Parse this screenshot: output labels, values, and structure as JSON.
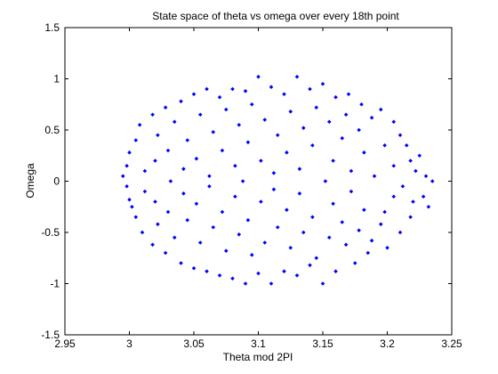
{
  "chart_data": {
    "type": "scatter",
    "title": "State space of theta vs omega over every 18th point",
    "xlabel": "Theta mod 2PI",
    "ylabel": "Omega",
    "xlim": [
      2.95,
      3.25
    ],
    "ylim": [
      -1.5,
      1.5
    ],
    "xticks": [
      2.95,
      3.0,
      3.05,
      3.1,
      3.15,
      3.2,
      3.25
    ],
    "xtick_labels": [
      "2.95",
      "3",
      "3.05",
      "3.1",
      "3.15",
      "3.2",
      "3.25"
    ],
    "yticks": [
      -1.5,
      -1.0,
      -0.5,
      0,
      0.5,
      1.0,
      1.5
    ],
    "ytick_labels": [
      "-1.5",
      "-1",
      "-0.5",
      "0",
      "0.5",
      "1",
      "1.5"
    ],
    "grid": false,
    "marker_color": "#0000ff",
    "series": [
      {
        "marker": "diamond",
        "points": [
          [
            2.995,
            0.05
          ],
          [
            2.998,
            -0.05
          ],
          [
            2.998,
            0.15
          ],
          [
            3.0,
            -0.18
          ],
          [
            3.0,
            0.28
          ],
          [
            3.002,
            -0.25
          ],
          [
            3.005,
            0.4
          ],
          [
            3.005,
            -0.35
          ],
          [
            3.008,
            0.55
          ],
          [
            3.01,
            -0.5
          ],
          [
            3.012,
            0.1
          ],
          [
            3.012,
            -0.1
          ],
          [
            3.018,
            0.65
          ],
          [
            3.018,
            -0.62
          ],
          [
            3.02,
            0.2
          ],
          [
            3.02,
            -0.2
          ],
          [
            3.022,
            0.45
          ],
          [
            3.022,
            -0.42
          ],
          [
            3.028,
            0.72
          ],
          [
            3.028,
            -0.7
          ],
          [
            3.03,
            0.3
          ],
          [
            3.03,
            -0.3
          ],
          [
            3.032,
            0.0
          ],
          [
            3.035,
            0.58
          ],
          [
            3.035,
            -0.55
          ],
          [
            3.04,
            0.78
          ],
          [
            3.04,
            -0.8
          ],
          [
            3.042,
            0.12
          ],
          [
            3.042,
            -0.12
          ],
          [
            3.045,
            0.4
          ],
          [
            3.045,
            -0.38
          ],
          [
            3.05,
            0.85
          ],
          [
            3.05,
            -0.85
          ],
          [
            3.052,
            0.22
          ],
          [
            3.052,
            -0.22
          ],
          [
            3.055,
            0.65
          ],
          [
            3.055,
            -0.6
          ],
          [
            3.06,
            0.9
          ],
          [
            3.06,
            -0.88
          ],
          [
            3.062,
            0.05
          ],
          [
            3.062,
            -0.05
          ],
          [
            3.065,
            0.48
          ],
          [
            3.065,
            -0.45
          ],
          [
            3.07,
            0.82
          ],
          [
            3.07,
            -0.92
          ],
          [
            3.072,
            0.3
          ],
          [
            3.072,
            -0.3
          ],
          [
            3.075,
            0.7
          ],
          [
            3.075,
            -0.68
          ],
          [
            3.08,
            0.9
          ],
          [
            3.08,
            -0.95
          ],
          [
            3.082,
            0.15
          ],
          [
            3.082,
            -0.15
          ],
          [
            3.085,
            0.55
          ],
          [
            3.085,
            -0.52
          ],
          [
            3.088,
            0.0
          ],
          [
            3.09,
            -1.0
          ],
          [
            3.09,
            0.88
          ],
          [
            3.092,
            0.38
          ],
          [
            3.092,
            -0.38
          ],
          [
            3.095,
            0.75
          ],
          [
            3.095,
            -0.72
          ],
          [
            3.1,
            1.02
          ],
          [
            3.1,
            -0.9
          ],
          [
            3.102,
            0.2
          ],
          [
            3.102,
            -0.2
          ],
          [
            3.105,
            0.6
          ],
          [
            3.105,
            -0.6
          ],
          [
            3.11,
            0.92
          ],
          [
            3.11,
            -1.0
          ],
          [
            3.112,
            0.08
          ],
          [
            3.112,
            -0.08
          ],
          [
            3.115,
            0.45
          ],
          [
            3.115,
            -0.45
          ],
          [
            3.12,
            0.85
          ],
          [
            3.12,
            -0.88
          ],
          [
            3.122,
            0.28
          ],
          [
            3.122,
            -0.28
          ],
          [
            3.125,
            0.68
          ],
          [
            3.125,
            -0.65
          ],
          [
            3.13,
            1.02
          ],
          [
            3.13,
            -0.92
          ],
          [
            3.132,
            0.12
          ],
          [
            3.132,
            -0.12
          ],
          [
            3.135,
            0.52
          ],
          [
            3.135,
            -0.5
          ],
          [
            3.14,
            0.9
          ],
          [
            3.14,
            -0.82
          ],
          [
            3.142,
            0.35
          ],
          [
            3.142,
            -0.35
          ],
          [
            3.145,
            0.72
          ],
          [
            3.145,
            -0.75
          ],
          [
            3.15,
            0.95
          ],
          [
            3.15,
            -1.0
          ],
          [
            3.152,
            0.0
          ],
          [
            3.155,
            0.58
          ],
          [
            3.155,
            -0.55
          ],
          [
            3.158,
            0.2
          ],
          [
            3.158,
            -0.22
          ],
          [
            3.16,
            0.82
          ],
          [
            3.16,
            -0.88
          ],
          [
            3.165,
            0.42
          ],
          [
            3.165,
            -0.4
          ],
          [
            3.168,
            0.65
          ],
          [
            3.168,
            -0.62
          ],
          [
            3.17,
            0.85
          ],
          [
            3.172,
            0.1
          ],
          [
            3.172,
            -0.1
          ],
          [
            3.175,
            -0.8
          ],
          [
            3.178,
            0.5
          ],
          [
            3.178,
            -0.48
          ],
          [
            3.18,
            0.75
          ],
          [
            3.182,
            0.28
          ],
          [
            3.182,
            -0.28
          ],
          [
            3.185,
            -0.7
          ],
          [
            3.188,
            0.62
          ],
          [
            3.188,
            -0.58
          ],
          [
            3.19,
            0.05
          ],
          [
            3.195,
            0.7
          ],
          [
            3.195,
            -0.42
          ],
          [
            3.198,
            0.35
          ],
          [
            3.198,
            -0.3
          ],
          [
            3.2,
            -0.65
          ],
          [
            3.205,
            0.58
          ],
          [
            3.205,
            0.15
          ],
          [
            3.205,
            -0.15
          ],
          [
            3.21,
            0.45
          ],
          [
            3.21,
            -0.5
          ],
          [
            3.212,
            -0.05
          ],
          [
            3.215,
            0.35
          ],
          [
            3.218,
            0.2
          ],
          [
            3.218,
            -0.35
          ],
          [
            3.22,
            -0.2
          ],
          [
            3.222,
            0.1
          ],
          [
            3.225,
            0.25
          ],
          [
            3.228,
            -0.15
          ],
          [
            3.23,
            0.05
          ],
          [
            3.232,
            -0.25
          ],
          [
            3.235,
            0.0
          ]
        ]
      }
    ]
  }
}
